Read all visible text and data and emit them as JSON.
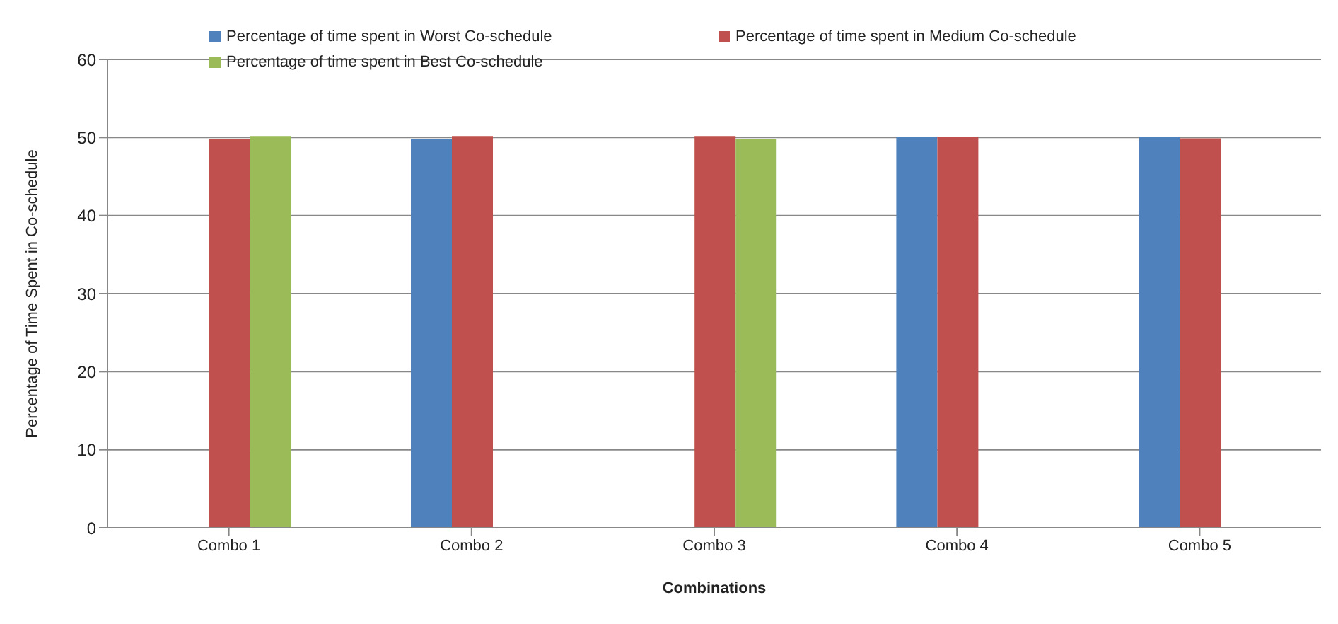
{
  "chart_data": {
    "type": "bar",
    "xlabel": "Combinations",
    "ylabel": "Percentage of Time Spent in Co-schedule",
    "categories": [
      "Combo 1",
      "Combo 2",
      "Combo 3",
      "Combo 4",
      "Combo 5"
    ],
    "series": [
      {
        "name": "Percentage of time spent in Worst Co-schedule",
        "color": "#4f81bd",
        "values": [
          0.1,
          49.8,
          0.1,
          50.1,
          50.1
        ]
      },
      {
        "name": "Percentage of time spent in Medium Co-schedule",
        "color": "#c0504d",
        "values": [
          49.8,
          50.2,
          50.2,
          50.1,
          49.9
        ]
      },
      {
        "name": "Percentage of time spent in Best Co-schedule",
        "color": "#9bbb59",
        "values": [
          50.2,
          0.1,
          49.8,
          0,
          0
        ]
      }
    ],
    "ylim": [
      0,
      60
    ],
    "yticks": [
      0,
      10,
      20,
      30,
      40,
      50,
      60
    ],
    "grid": "y",
    "legend": "top"
  }
}
